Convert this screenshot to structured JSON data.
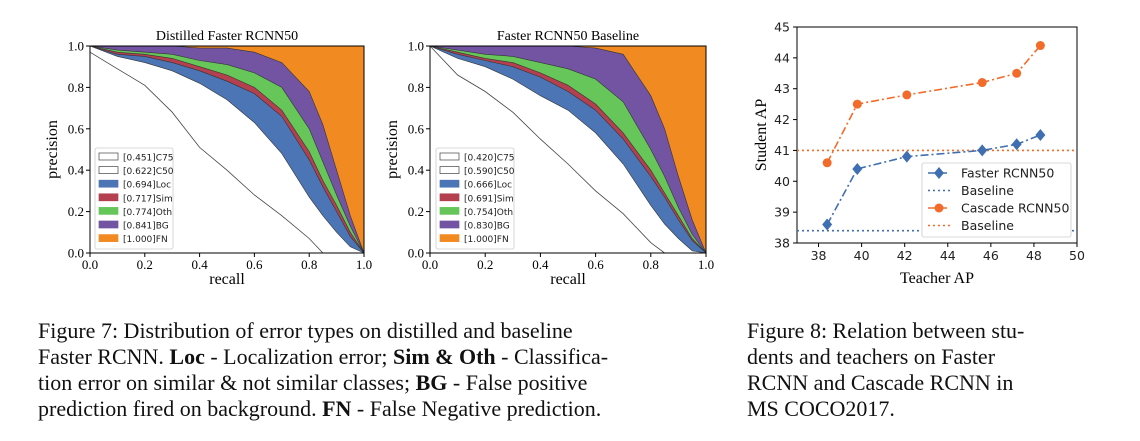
{
  "chart_data": [
    {
      "type": "area",
      "title": "Distilled Faster RCNN50",
      "xlabel": "recall",
      "ylabel": "precision",
      "xlim": [
        0,
        1
      ],
      "ylim": [
        0,
        1
      ],
      "xticks": [
        "0.0",
        "0.2",
        "0.4",
        "0.6",
        "0.8",
        "1.0"
      ],
      "yticks": [
        "0.0",
        "0.2",
        "0.4",
        "0.6",
        "0.8",
        "1.0"
      ],
      "legend_position": "lower-left",
      "x": [
        0,
        0.1,
        0.2,
        0.3,
        0.4,
        0.5,
        0.6,
        0.7,
        0.8,
        0.85,
        0.9,
        0.95,
        1.0
      ],
      "series": [
        {
          "name": "[0.451]C75",
          "color": "#ffffff",
          "values": [
            0.97,
            0.89,
            0.81,
            0.68,
            0.51,
            0.4,
            0.28,
            0.18,
            0.07,
            0,
            0,
            0,
            0
          ]
        },
        {
          "name": "[0.622]C50",
          "color": "#ffffff",
          "values": [
            1.0,
            0.95,
            0.92,
            0.88,
            0.82,
            0.74,
            0.63,
            0.48,
            0.27,
            0.18,
            0.1,
            0.03,
            0
          ]
        },
        {
          "name": "[0.694]Loc",
          "color": "#4c75b5",
          "values": [
            1.0,
            0.96,
            0.95,
            0.92,
            0.88,
            0.83,
            0.77,
            0.66,
            0.45,
            0.32,
            0.2,
            0.08,
            0
          ]
        },
        {
          "name": "[0.717]Sim",
          "color": "#b4404f",
          "values": [
            1.0,
            0.97,
            0.96,
            0.94,
            0.9,
            0.86,
            0.8,
            0.69,
            0.49,
            0.35,
            0.23,
            0.1,
            0
          ]
        },
        {
          "name": "[0.774]Oth",
          "color": "#66c65a",
          "values": [
            1.0,
            0.98,
            0.97,
            0.96,
            0.93,
            0.91,
            0.87,
            0.8,
            0.6,
            0.44,
            0.28,
            0.13,
            0
          ]
        },
        {
          "name": "[0.841]BG",
          "color": "#7254a2",
          "values": [
            1.0,
            1.0,
            1.0,
            1.0,
            0.99,
            0.99,
            0.97,
            0.92,
            0.78,
            0.62,
            0.4,
            0.18,
            0
          ]
        },
        {
          "name": "[1.000]FN",
          "color": "#f28a22",
          "values": [
            1,
            1,
            1,
            1,
            1,
            1,
            1,
            1,
            1,
            1,
            1,
            1,
            1
          ]
        }
      ]
    },
    {
      "type": "area",
      "title": "Faster RCNN50 Baseline",
      "xlabel": "recall",
      "ylabel": "precision",
      "xlim": [
        0,
        1
      ],
      "ylim": [
        0,
        1
      ],
      "xticks": [
        "0.0",
        "0.2",
        "0.4",
        "0.6",
        "0.8",
        "1.0"
      ],
      "yticks": [
        "0.0",
        "0.2",
        "0.4",
        "0.6",
        "0.8",
        "1.0"
      ],
      "legend_position": "lower-left",
      "x": [
        0,
        0.1,
        0.2,
        0.3,
        0.4,
        0.5,
        0.6,
        0.7,
        0.8,
        0.85,
        0.9,
        0.95,
        1.0
      ],
      "series": [
        {
          "name": "[0.420]C75",
          "color": "#ffffff",
          "values": [
            1.0,
            0.86,
            0.78,
            0.68,
            0.55,
            0.43,
            0.3,
            0.19,
            0.05,
            0,
            0,
            0,
            0
          ]
        },
        {
          "name": "[0.590]C50",
          "color": "#ffffff",
          "values": [
            1.0,
            0.94,
            0.9,
            0.84,
            0.76,
            0.69,
            0.58,
            0.43,
            0.23,
            0.14,
            0.07,
            0.01,
            0
          ]
        },
        {
          "name": "[0.666]Loc",
          "color": "#4c75b5",
          "values": [
            1.0,
            0.96,
            0.93,
            0.9,
            0.85,
            0.78,
            0.69,
            0.55,
            0.37,
            0.27,
            0.16,
            0.06,
            0
          ]
        },
        {
          "name": "[0.691]Sim",
          "color": "#b4404f",
          "values": [
            1.0,
            0.97,
            0.94,
            0.92,
            0.87,
            0.81,
            0.72,
            0.58,
            0.4,
            0.29,
            0.18,
            0.07,
            0
          ]
        },
        {
          "name": "[0.754]Oth",
          "color": "#66c65a",
          "values": [
            1.0,
            0.98,
            0.96,
            0.95,
            0.92,
            0.89,
            0.84,
            0.73,
            0.5,
            0.37,
            0.22,
            0.09,
            0
          ]
        },
        {
          "name": "[0.830]BG",
          "color": "#7254a2",
          "values": [
            1.0,
            1.0,
            1.0,
            1.0,
            1.0,
            1.0,
            0.99,
            0.96,
            0.76,
            0.6,
            0.37,
            0.16,
            0
          ]
        },
        {
          "name": "[1.000]FN",
          "color": "#f28a22",
          "values": [
            1,
            1,
            1,
            1,
            1,
            1,
            1,
            1,
            1,
            1,
            1,
            1,
            1
          ]
        }
      ]
    },
    {
      "type": "line",
      "xlabel": "Teacher AP",
      "ylabel": "Student AP",
      "xlim": [
        37,
        50
      ],
      "ylim": [
        38,
        45
      ],
      "xticks": [
        "38",
        "40",
        "42",
        "44",
        "46",
        "48",
        "50"
      ],
      "yticks": [
        "38",
        "39",
        "40",
        "41",
        "42",
        "43",
        "44",
        "45"
      ],
      "legend_position": "lower-right",
      "series": [
        {
          "name": "Faster RCNN50",
          "color": "#3f6fb0",
          "marker": "diamond",
          "style": "dash-dot",
          "x": [
            38.4,
            39.8,
            42.1,
            45.6,
            47.2,
            48.3
          ],
          "y": [
            38.6,
            40.4,
            40.8,
            41.0,
            41.2,
            41.5
          ]
        },
        {
          "name": "Baseline",
          "color": "#3f6fb0",
          "style": "dotted",
          "hline": 38.4
        },
        {
          "name": "Cascade RCNN50",
          "color": "#f26b2a",
          "marker": "circle",
          "style": "dash-dot",
          "x": [
            38.4,
            39.8,
            42.1,
            45.6,
            47.2,
            48.3
          ],
          "y": [
            40.6,
            42.5,
            42.8,
            43.2,
            43.5,
            44.4
          ]
        },
        {
          "name": "Baseline",
          "color": "#f26b2a",
          "style": "dotted",
          "hline": 41.0
        }
      ]
    }
  ],
  "captions": {
    "figure7": [
      [
        {
          "t": "Figure 7:  Distribution of error types on distilled and baseline"
        }
      ],
      [
        {
          "t": "Faster RCNN. "
        },
        {
          "t": "Loc",
          "b": true
        },
        {
          "t": " - Localization error; "
        },
        {
          "t": "Sim & Oth",
          "b": true
        },
        {
          "t": " - Classifica-"
        }
      ],
      [
        {
          "t": "tion error on similar & not similar classes; "
        },
        {
          "t": "BG",
          "b": true
        },
        {
          "t": " - False positive"
        }
      ],
      [
        {
          "t": "prediction fired on background. "
        },
        {
          "t": "FN",
          "b": true
        },
        {
          "t": " - False Negative prediction."
        }
      ]
    ],
    "figure8": [
      [
        {
          "t": "Figure 8: Relation between stu-"
        }
      ],
      [
        {
          "t": "dents and teachers on Faster"
        }
      ],
      [
        {
          "t": "RCNN and Cascade RCNN in"
        }
      ],
      [
        {
          "t": "MS COCO2017.",
          "last": true
        }
      ]
    ]
  }
}
